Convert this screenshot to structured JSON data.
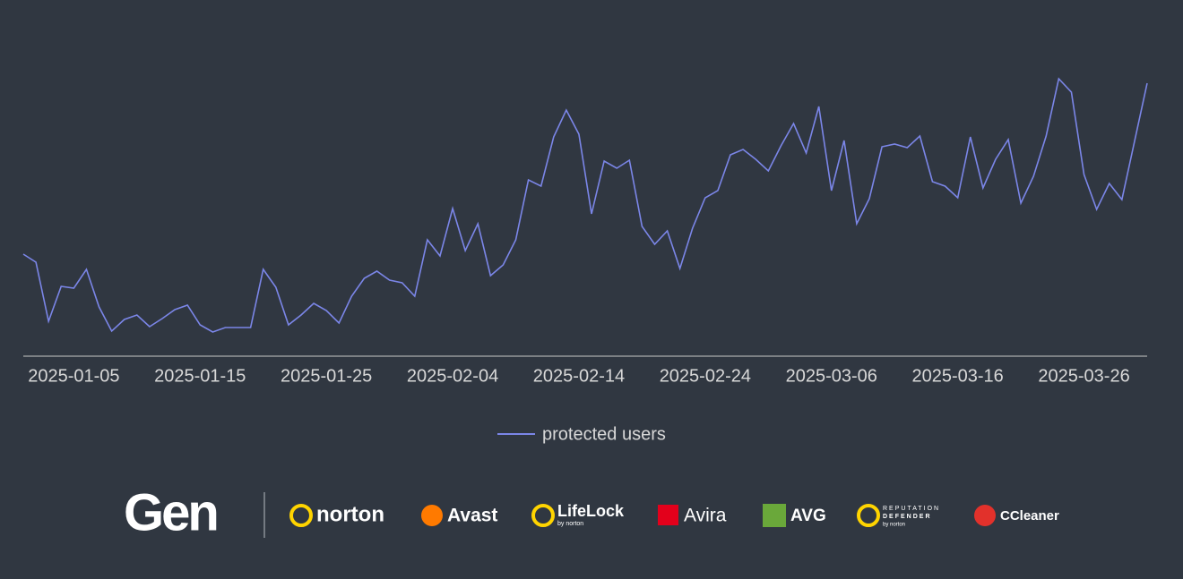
{
  "chart_data": {
    "type": "line",
    "x": [
      "2025-01-01",
      "2025-01-02",
      "2025-01-03",
      "2025-01-04",
      "2025-01-05",
      "2025-01-06",
      "2025-01-07",
      "2025-01-08",
      "2025-01-09",
      "2025-01-10",
      "2025-01-11",
      "2025-01-12",
      "2025-01-13",
      "2025-01-14",
      "2025-01-15",
      "2025-01-16",
      "2025-01-17",
      "2025-01-18",
      "2025-01-19",
      "2025-01-20",
      "2025-01-21",
      "2025-01-22",
      "2025-01-23",
      "2025-01-24",
      "2025-01-25",
      "2025-01-26",
      "2025-01-27",
      "2025-01-28",
      "2025-01-29",
      "2025-01-30",
      "2025-01-31",
      "2025-02-01",
      "2025-02-02",
      "2025-02-03",
      "2025-02-04",
      "2025-02-05",
      "2025-02-06",
      "2025-02-07",
      "2025-02-08",
      "2025-02-09",
      "2025-02-10",
      "2025-02-11",
      "2025-02-12",
      "2025-02-13",
      "2025-02-14",
      "2025-02-15",
      "2025-02-16",
      "2025-02-17",
      "2025-02-18",
      "2025-02-19",
      "2025-02-20",
      "2025-02-21",
      "2025-02-22",
      "2025-02-23",
      "2025-02-24",
      "2025-02-25",
      "2025-02-26",
      "2025-02-27",
      "2025-02-28",
      "2025-03-01",
      "2025-03-02",
      "2025-03-03",
      "2025-03-04",
      "2025-03-05",
      "2025-03-06",
      "2025-03-07",
      "2025-03-08",
      "2025-03-09",
      "2025-03-10",
      "2025-03-11",
      "2025-03-12",
      "2025-03-13",
      "2025-03-14",
      "2025-03-15",
      "2025-03-16",
      "2025-03-17",
      "2025-03-18",
      "2025-03-19",
      "2025-03-20",
      "2025-03-21",
      "2025-03-22",
      "2025-03-23",
      "2025-03-24",
      "2025-03-25",
      "2025-03-26",
      "2025-03-27",
      "2025-03-28",
      "2025-03-29",
      "2025-03-30",
      "2025-03-31"
    ],
    "series": [
      {
        "name": "protected users",
        "color": "#7b86e8",
        "values": [
          114,
          105,
          39,
          78,
          76,
          97,
          55,
          28,
          41,
          46,
          33,
          42,
          52,
          57,
          35,
          27,
          32,
          32,
          32,
          97,
          77,
          35,
          46,
          59,
          51,
          37,
          67,
          87,
          95,
          85,
          82,
          67,
          130,
          112,
          165,
          118,
          148,
          90,
          102,
          130,
          197,
          190,
          245,
          275,
          248,
          159,
          218,
          210,
          219,
          145,
          125,
          140,
          98,
          143,
          177,
          185,
          225,
          231,
          220,
          207,
          235,
          260,
          227,
          279,
          185,
          241,
          148,
          176,
          234,
          237,
          233,
          246,
          195,
          190,
          177,
          245,
          188,
          220,
          242,
          171,
          201,
          246,
          310,
          295,
          203,
          164,
          193,
          175,
          240,
          305
        ]
      }
    ],
    "xlim": [
      "2025-01-01",
      "2025-03-31"
    ],
    "xticks": [
      "2025-01-05",
      "2025-01-15",
      "2025-01-25",
      "2025-02-04",
      "2025-02-14",
      "2025-02-24",
      "2025-03-06",
      "2025-03-16",
      "2025-03-26"
    ]
  },
  "footer": {
    "gen": "Gen",
    "norton": "norton",
    "avast": "Avast",
    "lifelock": "LifeLock",
    "lifelock_sub": "by norton",
    "avira": "Avira",
    "avg": "AVG",
    "reputation": "REPUTATION",
    "defender": "DEFENDER",
    "defender_sub": "by norton",
    "ccleaner": "CCleaner"
  }
}
